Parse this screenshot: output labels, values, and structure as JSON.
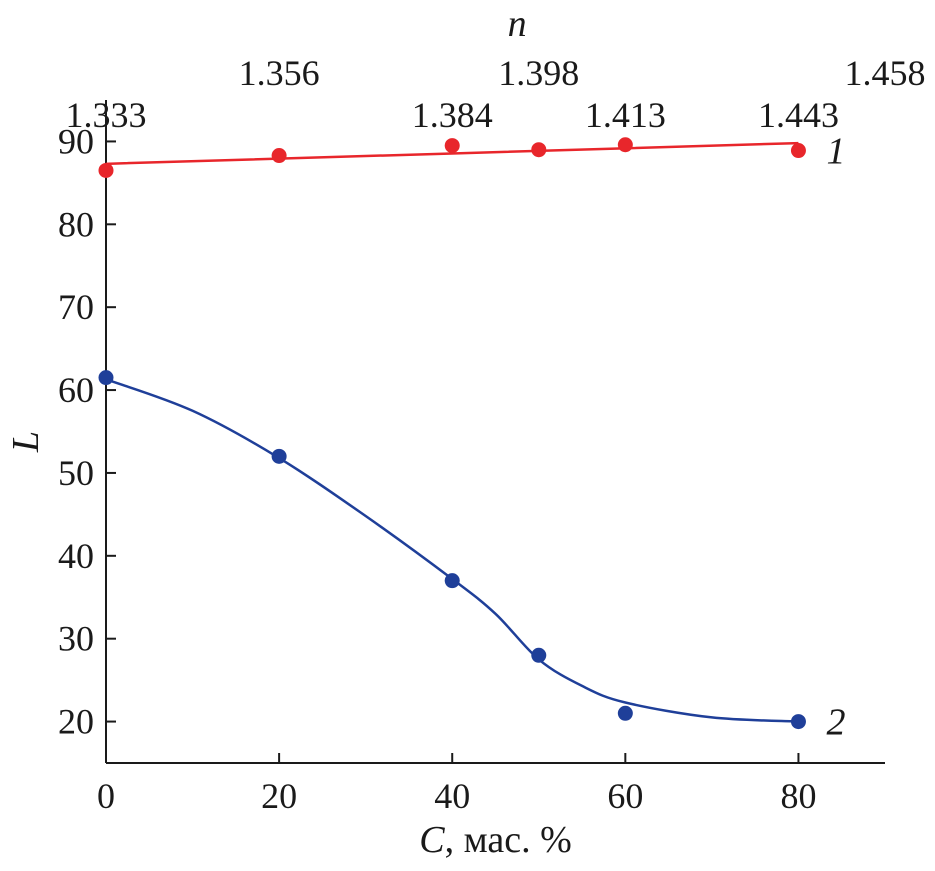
{
  "chart_data": {
    "type": "scatter",
    "xlabel_italic": "C",
    "xlabel_rest": ", мас. %",
    "ylabel": "L",
    "top_axis_label": "n",
    "xlim": [
      0,
      90
    ],
    "ylim": [
      15,
      95
    ],
    "x_ticks": [
      0,
      20,
      40,
      60,
      80
    ],
    "y_ticks": [
      20,
      30,
      40,
      50,
      60,
      70,
      80,
      90
    ],
    "top_ticks": [
      {
        "x": 0,
        "label": "1.333",
        "row": "lower"
      },
      {
        "x": 20,
        "label": "1.356",
        "row": "upper"
      },
      {
        "x": 40,
        "label": "1.384",
        "row": "lower"
      },
      {
        "x": 50,
        "label": "1.398",
        "row": "upper"
      },
      {
        "x": 60,
        "label": "1.413",
        "row": "lower"
      },
      {
        "x": 80,
        "label": "1.443",
        "row": "lower"
      },
      {
        "x": 90,
        "label": "1.458",
        "row": "upper"
      }
    ],
    "series": [
      {
        "label": "1",
        "color": "#e8262b",
        "x": [
          0,
          20,
          40,
          50,
          60,
          80
        ],
        "y": [
          86.5,
          88.3,
          89.5,
          89.0,
          89.6,
          88.9
        ],
        "fit": [
          [
            0,
            87.3
          ],
          [
            80,
            89.8
          ]
        ]
      },
      {
        "label": "2",
        "color": "#1f3f99",
        "x": [
          0,
          20,
          40,
          50,
          60,
          80
        ],
        "y": [
          61.5,
          52.0,
          37.0,
          28.0,
          21.0,
          20.0
        ],
        "fit": [
          [
            0,
            61.3
          ],
          [
            10,
            57.5
          ],
          [
            20,
            51.8
          ],
          [
            30,
            44.8
          ],
          [
            40,
            37.2
          ],
          [
            45,
            33.0
          ],
          [
            50,
            27.5
          ],
          [
            55,
            24.3
          ],
          [
            60,
            22.3
          ],
          [
            70,
            20.5
          ],
          [
            80,
            20.0
          ]
        ]
      }
    ]
  }
}
